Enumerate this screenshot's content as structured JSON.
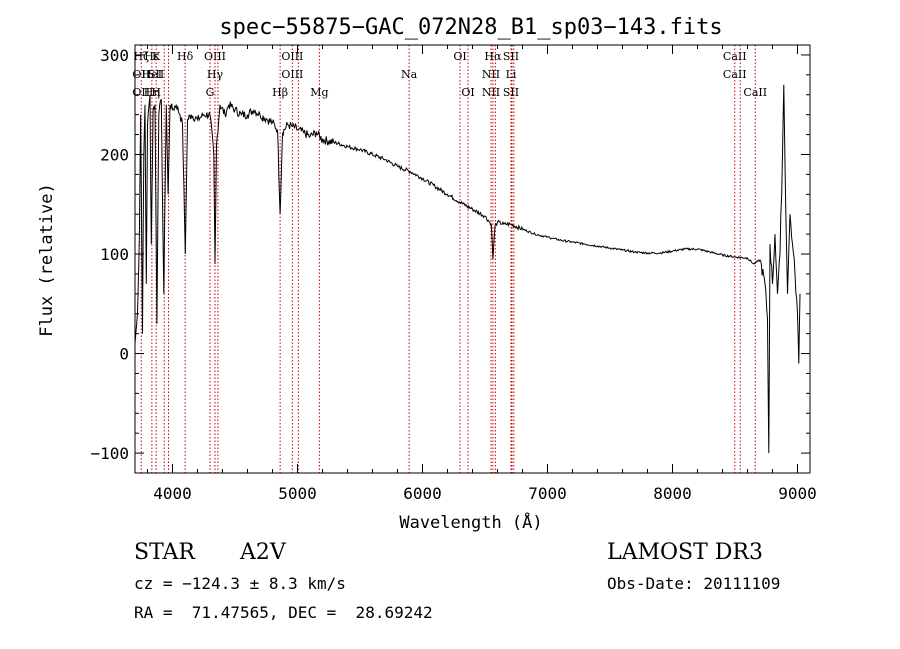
{
  "chart_data": {
    "type": "line",
    "title": "spec−55875−GAC_072N28_B1_sp03−143.fits",
    "xlabel": "Wavelength (Å)",
    "ylabel": "Flux (relative)",
    "xlim": [
      3700,
      9100
    ],
    "ylim": [
      -120,
      310
    ],
    "xticks": [
      4000,
      5000,
      6000,
      7000,
      8000,
      9000
    ],
    "xtick_labels": [
      "4000",
      "5000",
      "6000",
      "7000",
      "8000",
      "9000"
    ],
    "yticks": [
      -100,
      0,
      100,
      200,
      300
    ],
    "ytick_labels": [
      "−100",
      "0",
      "100",
      "200",
      "300"
    ],
    "series": [
      {
        "name": "spectrum",
        "points": [
          [
            3700,
            10
          ],
          [
            3720,
            40
          ],
          [
            3735,
            120
          ],
          [
            3745,
            240
          ],
          [
            3760,
            20
          ],
          [
            3770,
            200
          ],
          [
            3780,
            250
          ],
          [
            3790,
            70
          ],
          [
            3800,
            230
          ],
          [
            3820,
            260
          ],
          [
            3830,
            110
          ],
          [
            3845,
            245
          ],
          [
            3860,
            250
          ],
          [
            3875,
            30
          ],
          [
            3890,
            240
          ],
          [
            3910,
            255
          ],
          [
            3930,
            60
          ],
          [
            3950,
            250
          ],
          [
            3965,
            160
          ],
          [
            3980,
            250
          ],
          [
            4000,
            245
          ],
          [
            4030,
            250
          ],
          [
            4060,
            240
          ],
          [
            4080,
            230
          ],
          [
            4102,
            100
          ],
          [
            4120,
            235
          ],
          [
            4150,
            240
          ],
          [
            4200,
            235
          ],
          [
            4250,
            240
          ],
          [
            4300,
            240
          ],
          [
            4330,
            200
          ],
          [
            4340,
            90
          ],
          [
            4352,
            210
          ],
          [
            4380,
            250
          ],
          [
            4420,
            240
          ],
          [
            4450,
            250
          ],
          [
            4500,
            245
          ],
          [
            4550,
            240
          ],
          [
            4600,
            240
          ],
          [
            4650,
            245
          ],
          [
            4700,
            240
          ],
          [
            4750,
            236
          ],
          [
            4800,
            232
          ],
          [
            4840,
            225
          ],
          [
            4861,
            140
          ],
          [
            4880,
            222
          ],
          [
            4920,
            230
          ],
          [
            4960,
            228
          ],
          [
            5000,
            225
          ],
          [
            5050,
            222
          ],
          [
            5100,
            218
          ],
          [
            5150,
            222
          ],
          [
            5200,
            215
          ],
          [
            5300,
            212
          ],
          [
            5400,
            208
          ],
          [
            5500,
            205
          ],
          [
            5600,
            200
          ],
          [
            5700,
            195
          ],
          [
            5800,
            188
          ],
          [
            5900,
            183
          ],
          [
            6000,
            176
          ],
          [
            6100,
            168
          ],
          [
            6200,
            160
          ],
          [
            6300,
            152
          ],
          [
            6400,
            145
          ],
          [
            6500,
            138
          ],
          [
            6550,
            130
          ],
          [
            6563,
            95
          ],
          [
            6580,
            128
          ],
          [
            6600,
            132
          ],
          [
            6650,
            130
          ],
          [
            6700,
            130
          ],
          [
            6800,
            125
          ],
          [
            6900,
            120
          ],
          [
            7000,
            117
          ],
          [
            7100,
            114
          ],
          [
            7200,
            112
          ],
          [
            7300,
            110
          ],
          [
            7400,
            108
          ],
          [
            7500,
            106
          ],
          [
            7600,
            104
          ],
          [
            7700,
            102
          ],
          [
            7800,
            101
          ],
          [
            7900,
            101
          ],
          [
            8000,
            103
          ],
          [
            8100,
            105
          ],
          [
            8200,
            105
          ],
          [
            8300,
            102
          ],
          [
            8400,
            99
          ],
          [
            8500,
            97
          ],
          [
            8600,
            96
          ],
          [
            8650,
            90
          ],
          [
            8700,
            94
          ],
          [
            8740,
            70
          ],
          [
            8760,
            35
          ],
          [
            8770,
            -100
          ],
          [
            8780,
            110
          ],
          [
            8800,
            70
          ],
          [
            8820,
            120
          ],
          [
            8840,
            60
          ],
          [
            8860,
            100
          ],
          [
            8880,
            200
          ],
          [
            8890,
            270
          ],
          [
            8900,
            190
          ],
          [
            8920,
            60
          ],
          [
            8940,
            140
          ],
          [
            8960,
            110
          ],
          [
            8980,
            80
          ],
          [
            9000,
            40
          ],
          [
            9010,
            -10
          ],
          [
            9020,
            60
          ]
        ]
      }
    ],
    "line_marks": [
      {
        "x": 3750,
        "labels": [
          "Hζ",
          "OII",
          "OII"
        ]
      },
      {
        "x": 3835,
        "labels": [
          "Hε",
          "HeI",
          "Hη"
        ]
      },
      {
        "x": 3869,
        "labels": [
          "K",
          "SII",
          "H"
        ]
      },
      {
        "x": 3934,
        "labels": [
          "",
          "",
          ""
        ]
      },
      {
        "x": 3968,
        "labels": [
          "",
          "",
          ""
        ]
      },
      {
        "x": 4101,
        "labels": [
          "Hδ",
          "",
          ""
        ]
      },
      {
        "x": 4300,
        "labels": [
          "",
          "",
          "G"
        ]
      },
      {
        "x": 4340,
        "labels": [
          "OIII",
          "Hγ",
          ""
        ]
      },
      {
        "x": 4363,
        "labels": [
          "",
          "",
          ""
        ]
      },
      {
        "x": 4861,
        "labels": [
          "",
          "",
          "Hβ"
        ]
      },
      {
        "x": 4959,
        "labels": [
          "OIII",
          "OIII",
          ""
        ]
      },
      {
        "x": 5007,
        "labels": [
          "",
          "",
          ""
        ]
      },
      {
        "x": 5175,
        "labels": [
          "",
          "",
          "Mg"
        ]
      },
      {
        "x": 5893,
        "labels": [
          "",
          "Na",
          ""
        ]
      },
      {
        "x": 6300,
        "labels": [
          "OI",
          "",
          ""
        ]
      },
      {
        "x": 6364,
        "labels": [
          "",
          "",
          "OI"
        ]
      },
      {
        "x": 6548,
        "labels": [
          "",
          "NII",
          "NII"
        ]
      },
      {
        "x": 6563,
        "labels": [
          "Hα",
          "",
          ""
        ]
      },
      {
        "x": 6583,
        "labels": [
          "",
          "",
          ""
        ]
      },
      {
        "x": 6708,
        "labels": [
          "SII",
          "Li",
          "SII"
        ]
      },
      {
        "x": 6716,
        "labels": [
          "",
          "",
          ""
        ]
      },
      {
        "x": 6731,
        "labels": [
          "",
          "",
          ""
        ]
      },
      {
        "x": 8498,
        "labels": [
          "CaII",
          "CaII",
          ""
        ]
      },
      {
        "x": 8542,
        "labels": [
          "",
          "",
          ""
        ]
      },
      {
        "x": 8662,
        "labels": [
          "",
          "",
          "CaII"
        ]
      }
    ],
    "colors": {
      "spectrum": "#000000",
      "marks": "#cc0000",
      "axes": "#000000"
    }
  },
  "info": {
    "class_label": "STAR",
    "subclass": "A2V",
    "survey": "LAMOST DR3",
    "cz": "cz = −124.3 ± 8.3 km/s",
    "obs_date": "Obs-Date: 20111109",
    "coords": "RA =  71.47565, DEC =  28.69242"
  }
}
